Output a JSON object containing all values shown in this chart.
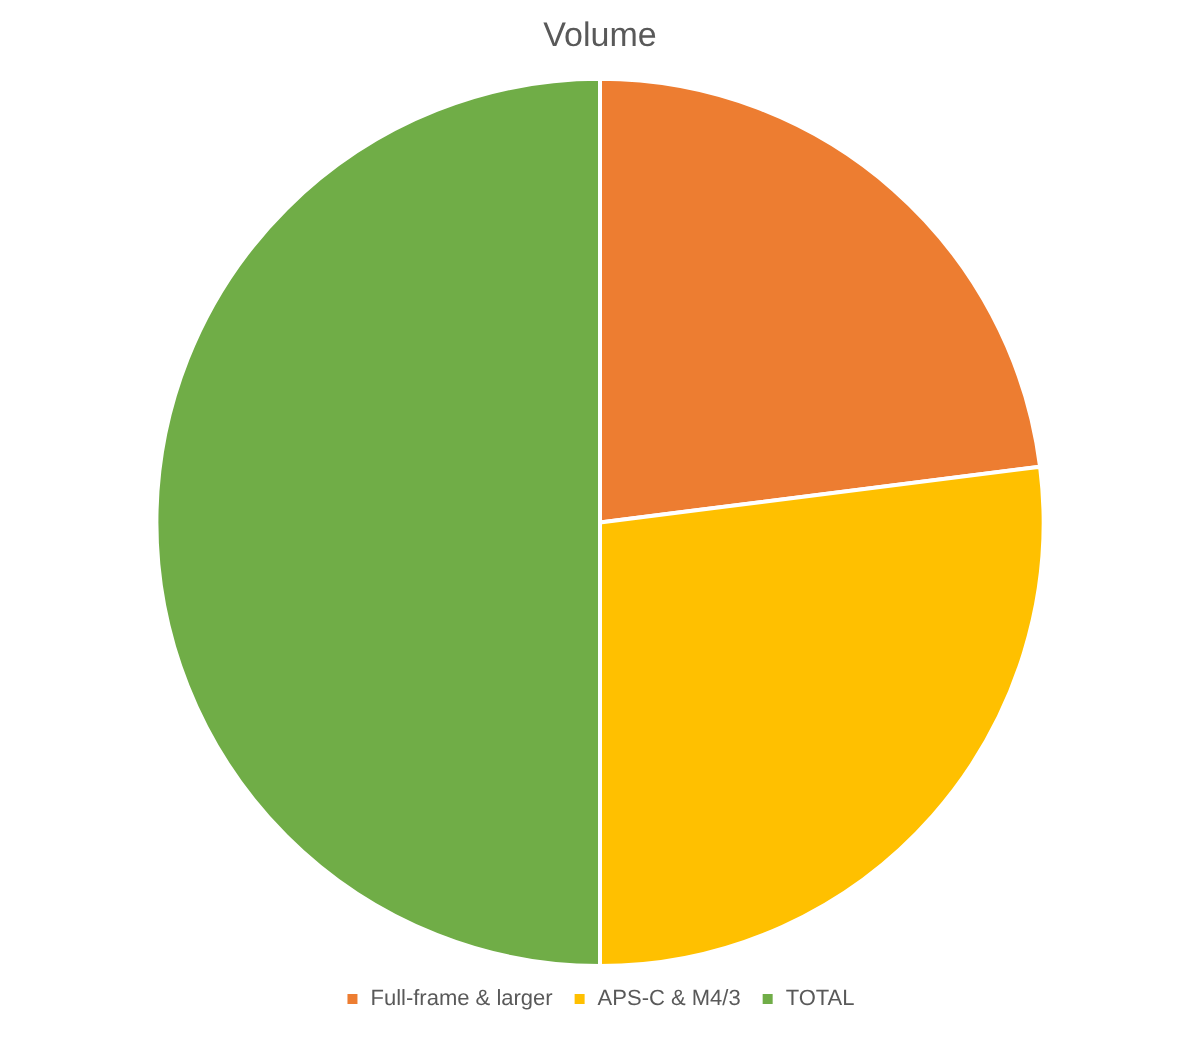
{
  "chart_data": {
    "type": "pie",
    "title": "Volume",
    "categories": [
      "Full-frame & larger",
      "APS-C & M4/3",
      "TOTAL"
    ],
    "values": [
      23,
      27,
      50
    ],
    "colors": [
      "#ed7d31",
      "#ffc000",
      "#70ad47"
    ],
    "legend": "bottom"
  }
}
